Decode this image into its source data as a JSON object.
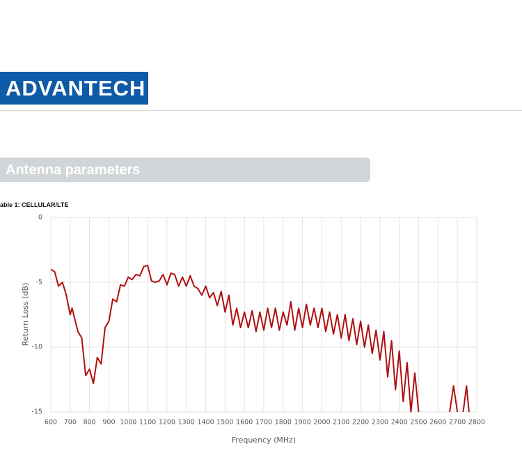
{
  "header": {
    "logo": "ADVANTECH"
  },
  "section": {
    "title": "Antenna parameters"
  },
  "caption": "able 1: CELLULAR/LTE",
  "chart_data": {
    "type": "line",
    "xlabel": "Frequency (MHz)",
    "ylabel": "Return Loss (dB)",
    "x": [
      600,
      620,
      640,
      660,
      680,
      700,
      710,
      740,
      760,
      780,
      800,
      820,
      840,
      860,
      880,
      900,
      920,
      940,
      960,
      980,
      1000,
      1020,
      1040,
      1060,
      1080,
      1100,
      1120,
      1140,
      1160,
      1180,
      1200,
      1220,
      1240,
      1260,
      1280,
      1300,
      1320,
      1340,
      1360,
      1380,
      1400,
      1420,
      1440,
      1460,
      1480,
      1500,
      1520,
      1540,
      1560,
      1580,
      1600,
      1620,
      1640,
      1660,
      1680,
      1700,
      1720,
      1740,
      1760,
      1780,
      1800,
      1820,
      1840,
      1860,
      1880,
      1900,
      1920,
      1940,
      1960,
      1980,
      2000,
      2020,
      2040,
      2060,
      2080,
      2100,
      2120,
      2140,
      2160,
      2180,
      2200,
      2220,
      2240,
      2260,
      2280,
      2300,
      2320,
      2340,
      2360,
      2380,
      2400,
      2420,
      2440,
      2460,
      2480,
      2500,
      2580,
      2660,
      2680,
      2700,
      2715,
      2730,
      2747,
      2760
    ],
    "series": [
      {
        "name": "Return Loss",
        "color": "#b00f0f",
        "values": [
          -4.0,
          -4.2,
          -5.3,
          -5.0,
          -6.0,
          -7.5,
          -7.0,
          -8.8,
          -9.3,
          -12.2,
          -11.7,
          -12.8,
          -10.8,
          -11.3,
          -8.5,
          -8.0,
          -6.3,
          -6.5,
          -5.2,
          -5.3,
          -4.6,
          -4.8,
          -4.4,
          -4.5,
          -3.8,
          -3.7,
          -4.9,
          -5.0,
          -4.9,
          -4.4,
          -5.2,
          -4.3,
          -4.4,
          -5.3,
          -4.6,
          -5.3,
          -4.5,
          -5.3,
          -5.5,
          -6.0,
          -5.3,
          -6.2,
          -5.8,
          -6.8,
          -5.7,
          -7.3,
          -6.0,
          -8.3,
          -7.0,
          -8.5,
          -7.3,
          -8.5,
          -7.2,
          -8.8,
          -7.3,
          -8.7,
          -7.0,
          -8.5,
          -7.0,
          -8.7,
          -7.3,
          -8.3,
          -6.5,
          -8.7,
          -7.0,
          -8.5,
          -6.7,
          -8.3,
          -7.0,
          -8.5,
          -7.0,
          -8.8,
          -7.3,
          -9.0,
          -7.5,
          -9.3,
          -7.5,
          -9.5,
          -7.8,
          -9.8,
          -8.0,
          -10.0,
          -8.3,
          -10.5,
          -8.7,
          -11.0,
          -8.8,
          -12.3,
          -9.5,
          -13.3,
          -10.3,
          -14.2,
          -11.2,
          -15.0,
          -12.0,
          -15.0,
          null,
          -15.0,
          -13.0,
          -15.0,
          null,
          -15.0,
          -13.0,
          -15.0
        ]
      }
    ],
    "xlim": [
      600,
      2800
    ],
    "xticks": [
      600,
      700,
      800,
      900,
      1000,
      1100,
      1200,
      1300,
      1400,
      1500,
      1600,
      1700,
      1800,
      1900,
      2000,
      2100,
      2200,
      2300,
      2400,
      2500,
      2600,
      2700,
      2800
    ],
    "ylim": [
      -15,
      0
    ],
    "yticks": [
      -15,
      -10,
      -5,
      0
    ],
    "grid": true
  }
}
